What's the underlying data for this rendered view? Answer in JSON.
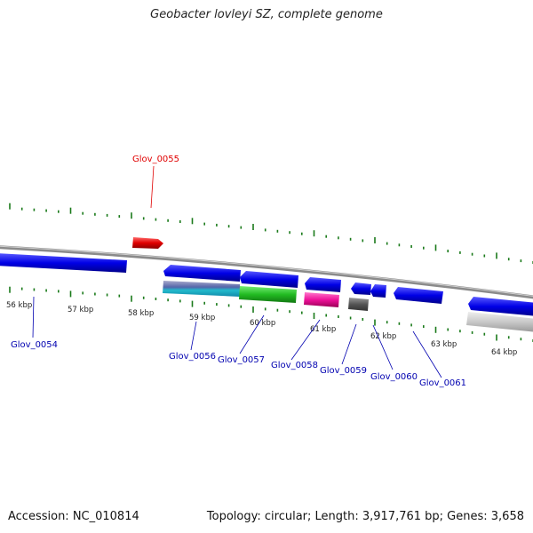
{
  "title": "Geobacter lovleyi SZ, complete genome",
  "footer": {
    "accession": "Accession: NC_010814",
    "topology": "Topology: circular; Length: 3,917,761 bp; Genes: 3,658"
  },
  "kbp_labels": [
    "56 kbp",
    "57 kbp",
    "58 kbp",
    "59 kbp",
    "60 kbp",
    "61 kbp",
    "62 kbp",
    "63 kbp",
    "64 kbp"
  ],
  "gene_labels": [
    {
      "name": "Glov_0055",
      "color": "#e00000"
    },
    {
      "name": "Glov_0054",
      "color": "#0000b0"
    },
    {
      "name": "Glov_0056",
      "color": "#0000b0"
    },
    {
      "name": "Glov_0057",
      "color": "#0000b0"
    },
    {
      "name": "Glov_0058",
      "color": "#0000b0"
    },
    {
      "name": "Glov_0059",
      "color": "#0000b0"
    },
    {
      "name": "Glov_0060",
      "color": "#0000b0"
    },
    {
      "name": "Glov_0061",
      "color": "#0000b0"
    }
  ],
  "colors": {
    "forward_gene": "#e00000",
    "reverse_gene": "#0000e6",
    "tick": "#1a7a1a",
    "backbone": "#888888",
    "green_gene": "#22bb22",
    "magenta_gene": "#ee1199",
    "dark_gene": "#555555",
    "cyan_gene": "#22bbcc",
    "light_gene": "#c8c8c8"
  }
}
